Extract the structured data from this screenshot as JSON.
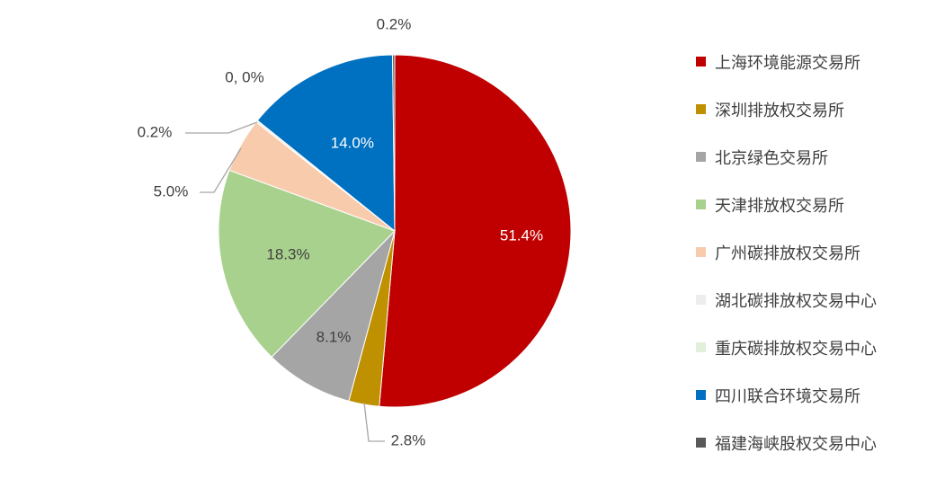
{
  "chart_data": {
    "type": "pie",
    "title": "",
    "legend_position": "right",
    "slices": [
      {
        "name": "上海环境能源交易所",
        "value": 51.4,
        "label": "51.4%",
        "color": "#C00000",
        "label_color": "#ffffff"
      },
      {
        "name": "深圳排放权交易所",
        "value": 2.8,
        "label": "2.8%",
        "color": "#BF9000",
        "label_color": "#404040"
      },
      {
        "name": "北京绿色交易所",
        "value": 8.1,
        "label": "8.1%",
        "color": "#A5A5A5",
        "label_color": "#404040"
      },
      {
        "name": "天津排放权交易所",
        "value": 18.3,
        "label": "18.3%",
        "color": "#A9D18E",
        "label_color": "#404040"
      },
      {
        "name": "广州碳排放权交易所",
        "value": 5.0,
        "label": "5.0%",
        "color": "#F8CBAD",
        "label_color": "#404040"
      },
      {
        "name": "湖北碳排放权交易中心",
        "value": 0.2,
        "label": "0.2%",
        "color": "#EDEDED",
        "label_color": "#404040"
      },
      {
        "name": "重庆碳排放权交易中心",
        "value": 0.0,
        "label": "0, 0%",
        "color": "#E2EFDA",
        "label_color": "#404040"
      },
      {
        "name": "四川联合环境交易所",
        "value": 14.0,
        "label": "14.0%",
        "color": "#0070C0",
        "label_color": "#ffffff"
      },
      {
        "name": "福建海峡股权交易中心",
        "value": 0.2,
        "label": "0.2%",
        "color": "#595959",
        "label_color": "#404040"
      }
    ]
  }
}
